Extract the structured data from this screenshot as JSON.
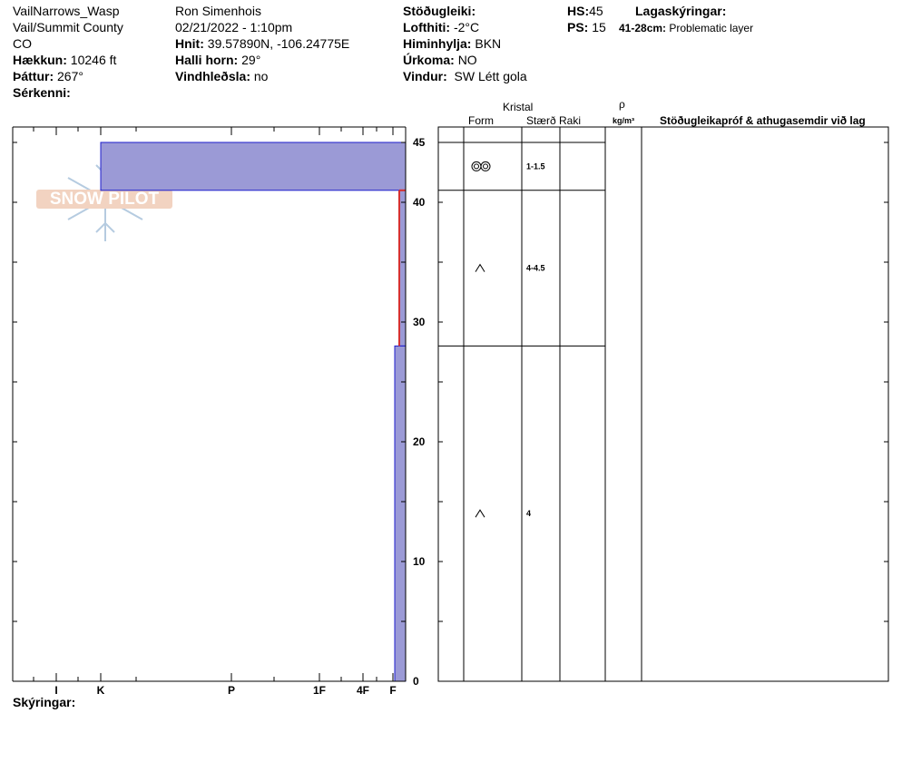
{
  "header": {
    "site": "VailNarrows_Wasp",
    "region": "Vail/Summit County",
    "state": "CO",
    "elevation_label": "Hækkun:",
    "elevation_value": "10246 ft",
    "aspect_label": "Þáttur:",
    "aspect_value": "267°",
    "features_label": "Sérkenni:",
    "observer": "Ron Simenhois",
    "datetime": "02/21/2022 - 1:10pm",
    "coords_label": "Hnit:",
    "coords_value": "39.57890N, -106.24775E",
    "slope_label": "Halli horn:",
    "slope_value": "29°",
    "wind_loading_label": "Vindhleðsla:",
    "wind_loading_value": "no",
    "stability_label": "Stöðugleiki:",
    "air_temp_label": "Lofthiti:",
    "air_temp_value": "-2°C",
    "sky_label": "Himinhylja:",
    "sky_value": "BKN",
    "precip_label": "Úrkoma:",
    "precip_value": "NO",
    "wind_label": "Vindur:",
    "wind_value": "SW Létt gola",
    "hs_label": "HS:",
    "hs_value": "45",
    "ps_label": "PS:",
    "ps_value": "15",
    "layer_notes_label": "Lagaskýringar:",
    "layer_note_range": "41-28cm:",
    "layer_note_text": "Problematic layer"
  },
  "logo": {
    "text": "SNOW PILOT"
  },
  "columns": {
    "crystal": "Kristal",
    "form": "Form",
    "size": "Stærð",
    "moisture": "Raki",
    "density_symbol": "ρ",
    "density_unit": "kg/m³",
    "tests": "Stöðugleikapróf & athugasemdir við lag"
  },
  "footer": {
    "legend_label": "Skýringar:"
  },
  "chart_data": {
    "type": "snow_profile",
    "height_axis": {
      "min": 0,
      "max": 45,
      "ticks": [
        0,
        10,
        20,
        30,
        40,
        45
      ],
      "unit": "cm"
    },
    "hardness_scale": [
      "I",
      "K",
      "P",
      "1F",
      "4F",
      "F"
    ],
    "hardness_profile": [
      {
        "top": 45,
        "bottom": 41,
        "hardness": "K"
      },
      {
        "top": 41,
        "bottom": 28,
        "hardness": "F"
      },
      {
        "top": 28,
        "bottom": 0,
        "hardness": "F"
      }
    ],
    "layers": [
      {
        "top": 45,
        "bottom": 41,
        "form_icon": "rounding-faceted",
        "size": "1-1.5"
      },
      {
        "top": 41,
        "bottom": 28,
        "form_icon": "depth-hoar",
        "size": "4-4.5"
      },
      {
        "top": 28,
        "bottom": 0,
        "form_icon": "depth-hoar",
        "size": "4"
      }
    ],
    "problematic_layer": {
      "top": 41,
      "bottom": 28
    },
    "colors": {
      "fill": "#9b9ad6",
      "edge": "#1c1ccc",
      "problem": "#d63030",
      "grid": "#000000"
    }
  }
}
